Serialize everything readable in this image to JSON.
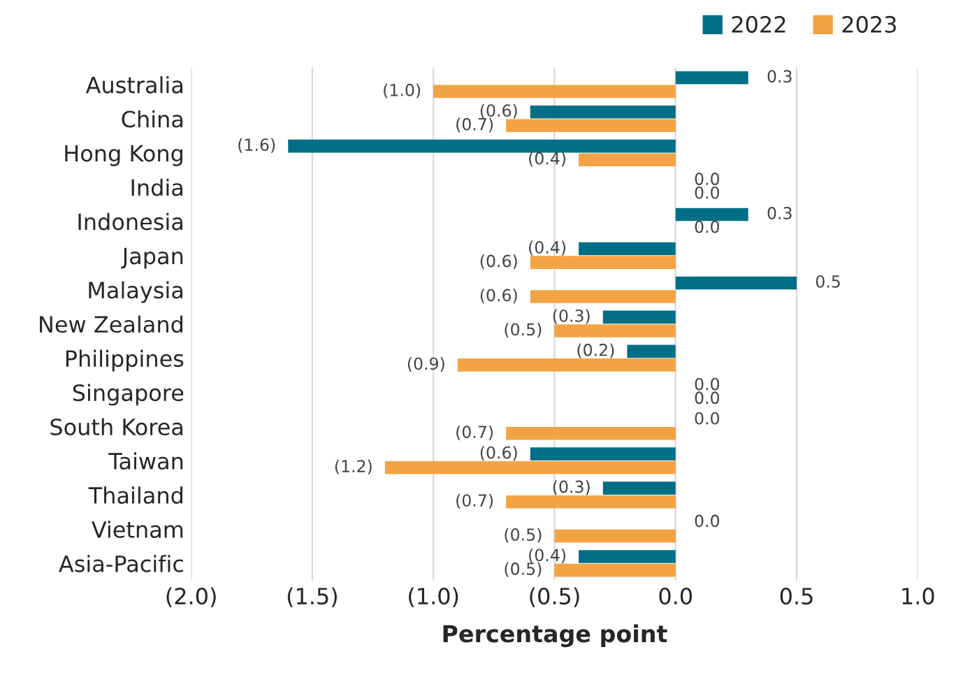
{
  "chart_data": {
    "type": "bar",
    "orientation": "horizontal",
    "xlabel": "Percentage point",
    "categories": [
      "Australia",
      "China",
      "Hong Kong",
      "India",
      "Indonesia",
      "Japan",
      "Malaysia",
      "New Zealand",
      "Philippines",
      "Singapore",
      "South Korea",
      "Taiwan",
      "Thailand",
      "Vietnam",
      "Asia-Pacific"
    ],
    "series": [
      {
        "name": "2022",
        "color": "#006f86",
        "values": [
          0.3,
          -0.6,
          -1.6,
          0.0,
          0.3,
          -0.4,
          0.5,
          -0.3,
          -0.2,
          0.0,
          0.0,
          -0.6,
          -0.3,
          0.0,
          -0.4
        ],
        "value_labels": [
          "0.3",
          "(0.6)",
          "(1.6)",
          "0.0",
          "0.3",
          "(0.4)",
          "0.5",
          "(0.3)",
          "(0.2)",
          "0.0",
          "0.0",
          "(0.6)",
          "(0.3)",
          "0.0",
          "(0.4)"
        ]
      },
      {
        "name": "2023",
        "color": "#f2a444",
        "values": [
          -1.0,
          -0.7,
          -0.4,
          0.0,
          0.0,
          -0.6,
          -0.6,
          -0.5,
          -0.9,
          0.0,
          -0.7,
          -1.2,
          -0.7,
          -0.5,
          -0.5
        ],
        "value_labels": [
          "(1.0)",
          "(0.7)",
          "(0.4)",
          "0.0",
          "0.0",
          "(0.6)",
          "(0.6)",
          "(0.5)",
          "(0.9)",
          "0.0",
          "(0.7)",
          "(1.2)",
          "(0.7)",
          "(0.5)",
          "(0.5)"
        ]
      }
    ],
    "xlim": [
      -2.0,
      1.0
    ],
    "xticks": [
      {
        "value": -2.0,
        "label": "(2.0)"
      },
      {
        "value": -1.5,
        "label": "(1.5)"
      },
      {
        "value": -1.0,
        "label": "(1.0)"
      },
      {
        "value": -0.5,
        "label": "(0.5)"
      },
      {
        "value": 0.0,
        "label": "0.0"
      },
      {
        "value": 0.5,
        "label": "0.5"
      },
      {
        "value": 1.0,
        "label": "1.0"
      }
    ],
    "grid": "x",
    "legend": "top right"
  }
}
